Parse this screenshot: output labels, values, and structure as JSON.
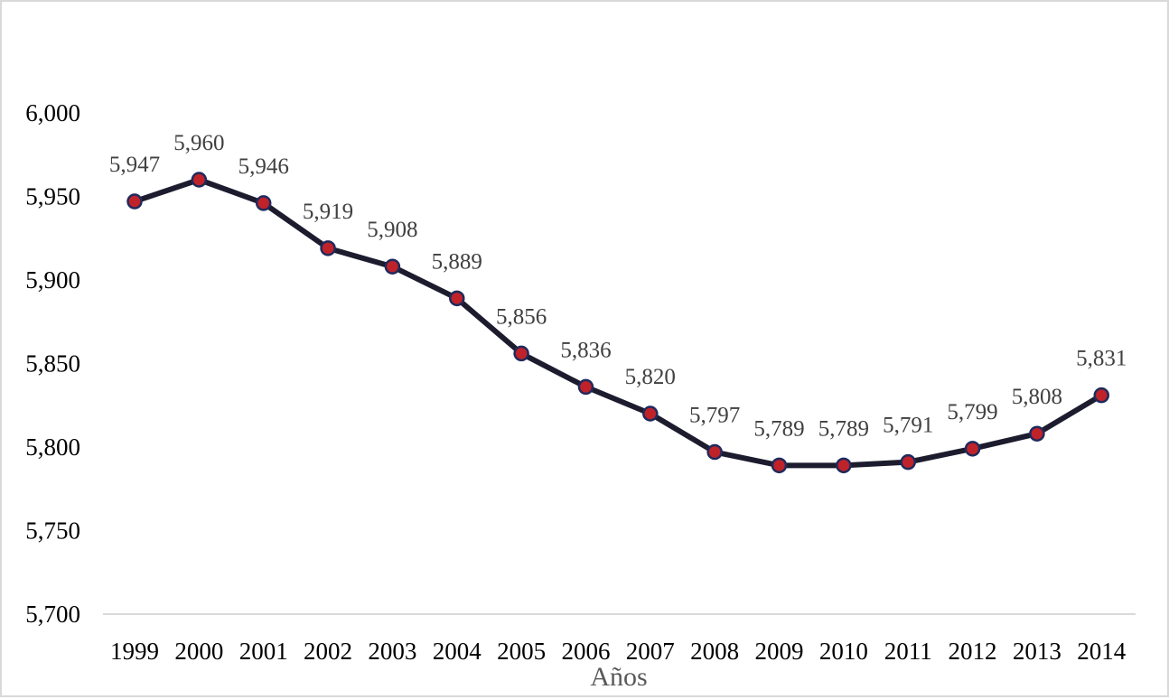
{
  "chart_data": {
    "type": "line",
    "title": "",
    "xlabel": "Años",
    "ylabel": "",
    "categories": [
      "1999",
      "2000",
      "2001",
      "2002",
      "2003",
      "2004",
      "2005",
      "2006",
      "2007",
      "2008",
      "2009",
      "2010",
      "2011",
      "2012",
      "2013",
      "2014"
    ],
    "values": [
      5947,
      5960,
      5946,
      5919,
      5908,
      5889,
      5856,
      5836,
      5820,
      5797,
      5789,
      5789,
      5791,
      5799,
      5808,
      5831
    ],
    "data_labels": [
      "5,947",
      "5,960",
      "5,946",
      "5,919",
      "5,908",
      "5,889",
      "5,856",
      "5,836",
      "5,820",
      "5,797",
      "5,789",
      "5,789",
      "5,791",
      "5,799",
      "5,808",
      "5,831"
    ],
    "ylim": [
      5700,
      6000
    ],
    "yticks": [
      5700,
      5750,
      5800,
      5850,
      5900,
      5950,
      6000
    ],
    "ytick_labels": [
      "5,700",
      "5,750",
      "5,800",
      "5,850",
      "5,900",
      "5,950",
      "6,000"
    ],
    "grid": false,
    "legend": "none",
    "colors": {
      "line": "#1c1c2e",
      "marker_fill": "#c0222a",
      "marker_edge": "#1f2a5c",
      "axis": "#d9d9d9",
      "data_label": "#404040",
      "axis_title": "#595959"
    }
  }
}
